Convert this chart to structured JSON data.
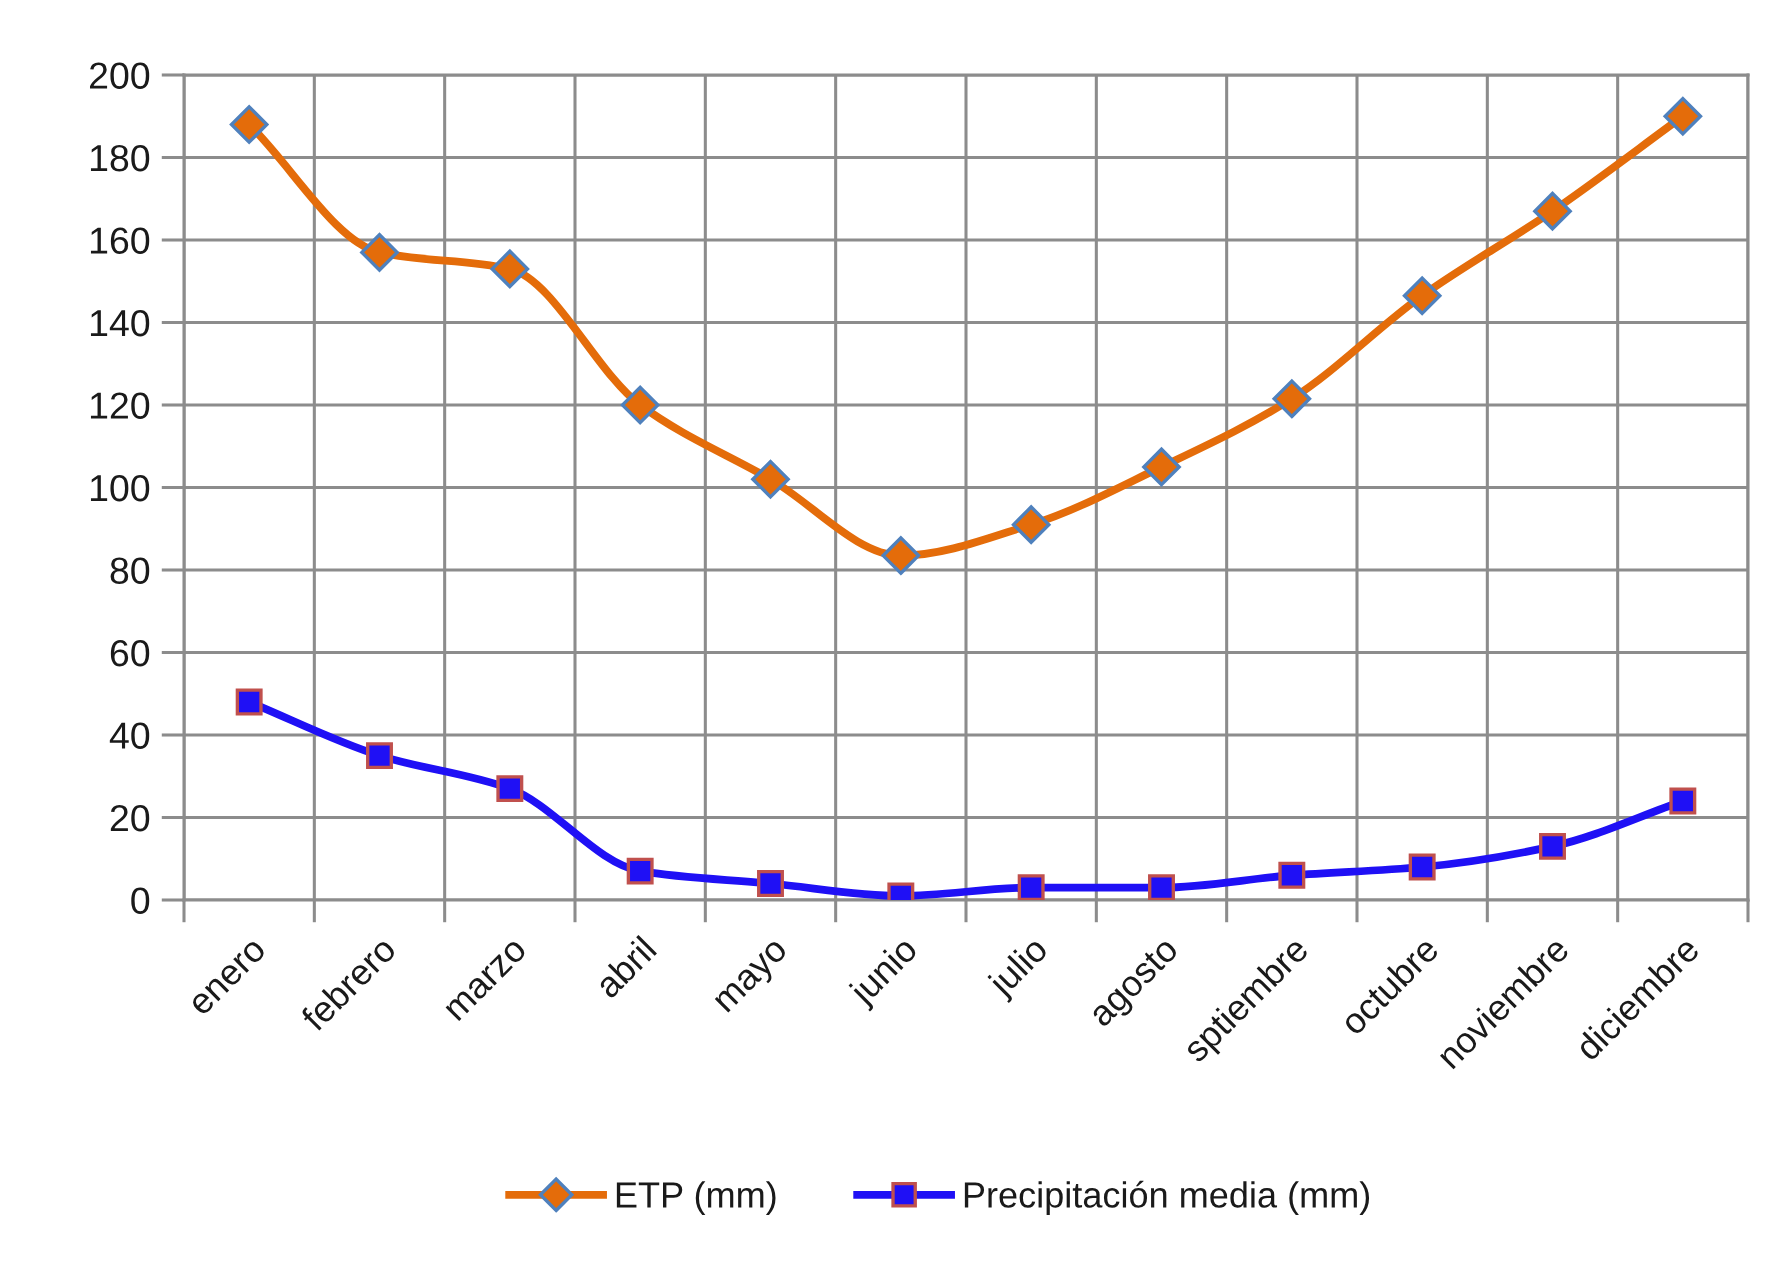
{
  "chart_data": {
    "type": "line",
    "categories": [
      "enero",
      "febrero",
      "marzo",
      "abril",
      "mayo",
      "junio",
      "julio",
      "agosto",
      "sptiembre",
      "octubre",
      "noviembre",
      "diciembre"
    ],
    "series": [
      {
        "name": "ETP (mm)",
        "color": "#e46c0a",
        "marker": "diamond",
        "values": [
          188,
          157,
          153,
          120,
          102,
          83.5,
          91,
          105,
          121.5,
          146.5,
          167,
          190
        ]
      },
      {
        "name": "Precipitación media (mm)",
        "color": "#1f10f5",
        "marker": "square",
        "values": [
          48,
          35,
          27,
          7,
          4,
          1,
          3,
          3,
          6,
          8,
          13,
          24
        ]
      }
    ],
    "ylim": [
      0,
      200
    ],
    "yticks": [
      0,
      20,
      40,
      60,
      80,
      100,
      120,
      140,
      160,
      180,
      200
    ],
    "grid": true,
    "legend": "bottom",
    "line_style": "solid"
  }
}
